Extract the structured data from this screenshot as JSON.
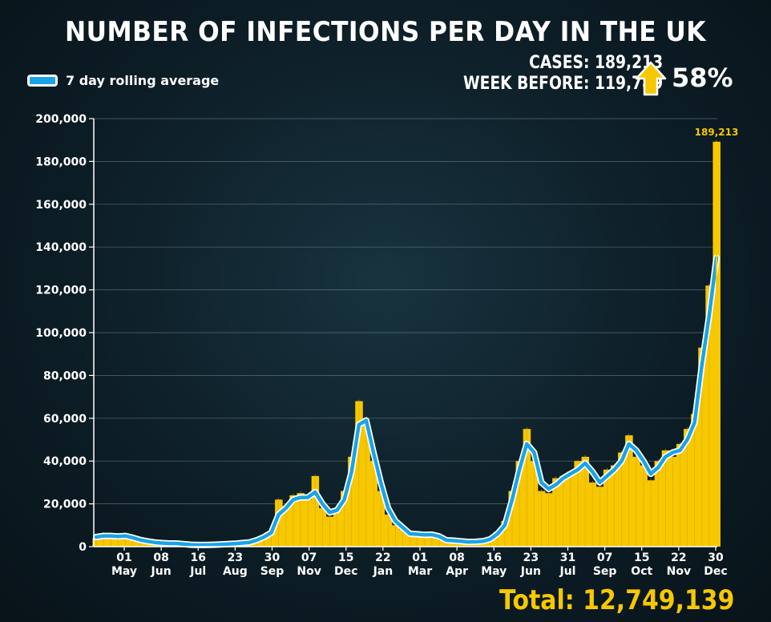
{
  "title": "NUMBER OF INFECTIONS PER DAY IN THE UK",
  "legend": {
    "label": "7 day rolling average",
    "color": "#1aa3e6"
  },
  "stats": {
    "cases": "CASES: 189,213",
    "week_before": "WEEK BEFORE: 119,789",
    "change": "58%",
    "arrow_icon": "up-arrow-icon"
  },
  "total": "Total: 12,749,139",
  "colors": {
    "bars": "#f7c800",
    "line": "#1aa3e6",
    "accent": "#f7c800"
  },
  "chart_data": {
    "type": "area",
    "y_ticks": [
      "200,000",
      "180,000",
      "160,000",
      "140,000",
      "120,000",
      "100,000",
      "80,000",
      "60,000",
      "40,000",
      "20,000",
      "0"
    ],
    "ylim": [
      0,
      200000
    ],
    "grid": true,
    "x_ticks": [
      {
        "day": "01",
        "month": "May"
      },
      {
        "day": "08",
        "month": "Jun"
      },
      {
        "day": "16",
        "month": "Jul"
      },
      {
        "day": "23",
        "month": "Aug"
      },
      {
        "day": "30",
        "month": "Sep"
      },
      {
        "day": "07",
        "month": "Nov"
      },
      {
        "day": "15",
        "month": "Dec"
      },
      {
        "day": "22",
        "month": "Jan"
      },
      {
        "day": "01",
        "month": "Mar"
      },
      {
        "day": "08",
        "month": "Apr"
      },
      {
        "day": "16",
        "month": "May"
      },
      {
        "day": "23",
        "month": "Jun"
      },
      {
        "day": "31",
        "month": "Jul"
      },
      {
        "day": "07",
        "month": "Sep"
      },
      {
        "day": "15",
        "month": "Oct"
      },
      {
        "day": "22",
        "month": "Nov"
      },
      {
        "day": "30",
        "month": "Dec"
      }
    ],
    "annotation": "189,213",
    "series": [
      {
        "name": "7 day rolling average",
        "values": [
          4500,
          5000,
          5000,
          4800,
          5000,
          4200,
          3200,
          2500,
          2000,
          1700,
          1500,
          1500,
          1200,
          900,
          800,
          800,
          900,
          1000,
          1200,
          1400,
          1700,
          2000,
          3000,
          4500,
          6500,
          15000,
          18000,
          22000,
          23000,
          23000,
          25500,
          20000,
          16000,
          17000,
          22000,
          35000,
          57000,
          59000,
          44000,
          30000,
          18000,
          12000,
          9000,
          6000,
          5800,
          5500,
          5600,
          4800,
          3000,
          2800,
          2500,
          2200,
          2300,
          2500,
          3500,
          6000,
          10000,
          22000,
          36000,
          48000,
          44000,
          30000,
          27000,
          29000,
          32000,
          34000,
          36000,
          39000,
          35000,
          30000,
          33000,
          36000,
          40000,
          48000,
          45000,
          40000,
          34000,
          37000,
          42000,
          44000,
          45000,
          50000,
          58000,
          85000,
          108000,
          135000
        ]
      },
      {
        "name": "Daily cases",
        "values": [
          4000,
          6000,
          5000,
          4500,
          5500,
          4000,
          3000,
          2600,
          2000,
          1700,
          1400,
          1600,
          1100,
          800,
          900,
          700,
          1000,
          1000,
          1300,
          1500,
          1600,
          2100,
          3200,
          4800,
          7000,
          22000,
          19000,
          24000,
          25000,
          22000,
          33000,
          18000,
          14000,
          18000,
          26000,
          42000,
          68000,
          58000,
          40000,
          26000,
          15000,
          10000,
          8000,
          6500,
          6000,
          5000,
          6200,
          4500,
          2800,
          3000,
          2400,
          2100,
          2500,
          2600,
          4000,
          7000,
          12000,
          26000,
          40000,
          55000,
          40000,
          26000,
          25000,
          32000,
          33000,
          35000,
          40000,
          42000,
          30000,
          28000,
          36000,
          38000,
          44000,
          52000,
          42000,
          38000,
          31000,
          40000,
          45000,
          42000,
          48000,
          55000,
          62000,
          93000,
          122000,
          189213
        ]
      }
    ]
  }
}
